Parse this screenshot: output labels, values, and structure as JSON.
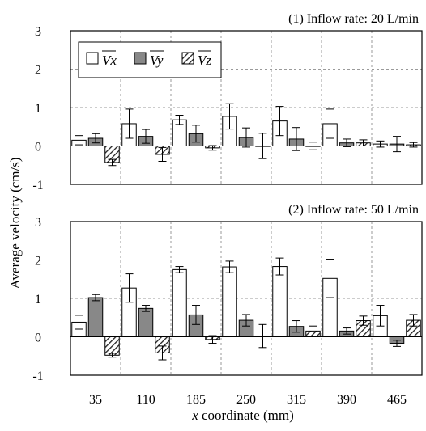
{
  "chart_data": [
    {
      "type": "bar",
      "title": "(1) Inflow rate: 20 L/min",
      "categories": [
        "35",
        "110",
        "185",
        "250",
        "315",
        "390",
        "465"
      ],
      "ylim": [
        -1,
        3
      ],
      "yticks": [
        "3",
        "2",
        "1",
        "0",
        "-1"
      ],
      "grid": true,
      "legend_position": "top-left",
      "series": [
        {
          "name": "Vx",
          "fill": "#ffffff",
          "values": [
            0.15,
            0.58,
            0.68,
            0.77,
            0.65,
            0.58,
            0.05
          ],
          "errors": [
            0.12,
            0.38,
            0.12,
            0.33,
            0.38,
            0.38,
            0.08
          ]
        },
        {
          "name": "Vy",
          "fill": "#888888",
          "values": [
            0.2,
            0.25,
            0.32,
            0.22,
            0.18,
            0.08,
            0.05
          ],
          "errors": [
            0.12,
            0.18,
            0.22,
            0.25,
            0.3,
            0.1,
            0.2
          ]
        },
        {
          "name": "Vz",
          "fill": "hatch",
          "values": [
            -0.43,
            -0.22,
            -0.05,
            0.0,
            0.0,
            0.08,
            0.03
          ],
          "errors": [
            0.08,
            0.18,
            0.06,
            0.33,
            0.1,
            0.08,
            0.06
          ]
        }
      ]
    },
    {
      "type": "bar",
      "title": "(2) Inflow rate: 50 L/min",
      "categories": [
        "35",
        "110",
        "185",
        "250",
        "315",
        "390",
        "465"
      ],
      "ylim": [
        -1,
        3
      ],
      "yticks": [
        "3",
        "2",
        "1",
        "0",
        "-1"
      ],
      "grid": true,
      "series": [
        {
          "name": "Vx",
          "fill": "#ffffff",
          "values": [
            0.38,
            1.27,
            1.75,
            1.82,
            1.83,
            1.52,
            0.55
          ],
          "errors": [
            0.18,
            0.37,
            0.08,
            0.15,
            0.22,
            0.5,
            0.27
          ]
        },
        {
          "name": "Vy",
          "fill": "#888888",
          "values": [
            1.02,
            0.74,
            0.57,
            0.43,
            0.27,
            0.15,
            -0.17
          ],
          "errors": [
            0.08,
            0.08,
            0.25,
            0.15,
            0.15,
            0.08,
            0.08
          ]
        },
        {
          "name": "Vz",
          "fill": "hatch",
          "values": [
            -0.48,
            -0.42,
            -0.07,
            0.02,
            0.15,
            0.42,
            0.43
          ],
          "errors": [
            0.05,
            0.18,
            0.1,
            0.3,
            0.13,
            0.12,
            0.15
          ]
        }
      ]
    }
  ],
  "axes": {
    "ylabel": "Average velocity (cm/s)",
    "xlabel_var": "x",
    "xlabel_rest": " coordinate (mm)"
  }
}
